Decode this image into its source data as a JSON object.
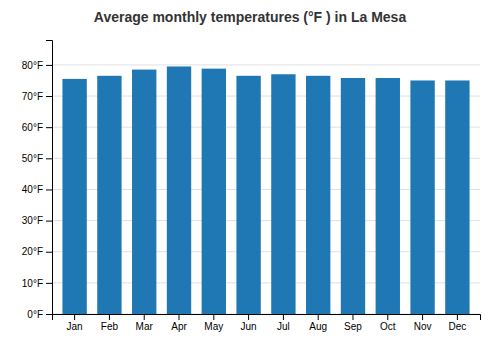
{
  "chart_data": {
    "type": "bar",
    "title": "Average monthly temperatures (°F ) in La Mesa",
    "categories": [
      "Jan",
      "Feb",
      "Mar",
      "Apr",
      "May",
      "Jun",
      "Jul",
      "Aug",
      "Sep",
      "Oct",
      "Nov",
      "Dec"
    ],
    "values": [
      75.5,
      76.5,
      78.5,
      79.5,
      78.8,
      76.5,
      77.0,
      76.5,
      75.8,
      75.8,
      75.0,
      75.0
    ],
    "ylim": [
      0,
      88
    ],
    "yticks": [
      {
        "value": 0,
        "label": "0°F"
      },
      {
        "value": 10,
        "label": "10°F"
      },
      {
        "value": 20,
        "label": "20°F"
      },
      {
        "value": 30,
        "label": "30°F"
      },
      {
        "value": 40,
        "label": "40°F"
      },
      {
        "value": 50,
        "label": "50°F"
      },
      {
        "value": 60,
        "label": "60°F"
      },
      {
        "value": 70,
        "label": "70°F"
      },
      {
        "value": 80,
        "label": "80°F"
      }
    ],
    "grid": true
  }
}
